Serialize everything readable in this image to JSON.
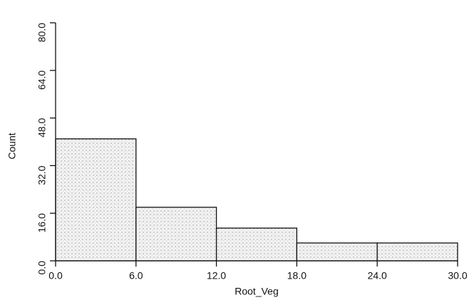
{
  "chart_data": {
    "type": "histogram",
    "x_label": "Root_Veg",
    "y_label": "Count",
    "bins": [
      0,
      6,
      12,
      18,
      24,
      30
    ],
    "values": [
      41,
      18,
      11,
      6,
      6
    ],
    "color": "#e4e4e4",
    "xlim": [
      0,
      30
    ],
    "ylim": [
      0,
      80
    ],
    "xticks": [
      {
        "value": 0,
        "label": "0.0"
      },
      {
        "value": 6,
        "label": "6.0"
      },
      {
        "value": 12,
        "label": "12.0"
      },
      {
        "value": 18,
        "label": "18.0"
      },
      {
        "value": 24,
        "label": "24.0"
      },
      {
        "value": 30,
        "label": "30.0"
      }
    ],
    "yticks": [
      {
        "value": 0,
        "label": "0.0"
      },
      {
        "value": 16,
        "label": "16.0"
      },
      {
        "value": 32,
        "label": "32.0"
      },
      {
        "value": 48,
        "label": "48.0"
      },
      {
        "value": 64,
        "label": "64.0"
      },
      {
        "value": 80,
        "label": "80.0"
      }
    ]
  }
}
